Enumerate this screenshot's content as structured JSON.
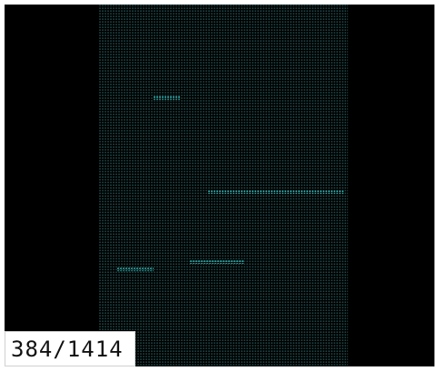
{
  "viewer": {
    "frame_counter": "384/1414"
  },
  "colors": {
    "background": "#000000",
    "dot_dim": "#224e4e",
    "dot_bright": "#2a9a9a",
    "counter_background": "#ffffff",
    "counter_text": "#111111"
  }
}
